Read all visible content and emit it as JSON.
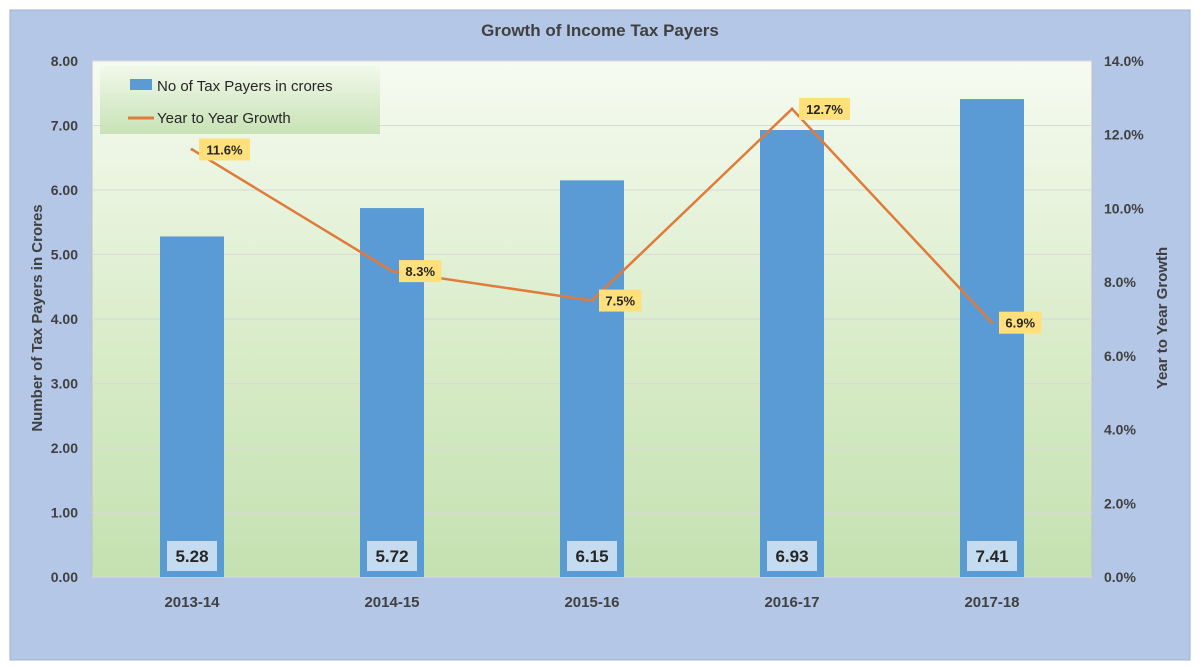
{
  "chart_data": {
    "type": "bar",
    "title": "Growth of Income Tax Payers",
    "categories": [
      "2013-14",
      "2014-15",
      "2015-16",
      "2016-17",
      "2017-18"
    ],
    "ylabel": "Number of Tax Payers in Crores",
    "y2label": "Year to Year Growth",
    "ylim": [
      0,
      8
    ],
    "y2lim": [
      0,
      14
    ],
    "yticks": [
      "0.00",
      "1.00",
      "2.00",
      "3.00",
      "4.00",
      "5.00",
      "6.00",
      "7.00",
      "8.00"
    ],
    "y2ticks": [
      "0.0%",
      "2.0%",
      "4.0%",
      "6.0%",
      "8.0%",
      "10.0%",
      "12.0%",
      "14.0%"
    ],
    "grid": true,
    "legend_position": "top-left",
    "series": [
      {
        "name": "No of Tax Payers in crores",
        "type": "bar",
        "axis": "left",
        "color": "#5b9bd5",
        "values": [
          5.28,
          5.72,
          6.15,
          6.93,
          7.41
        ],
        "labels": [
          "5.28",
          "5.72",
          "6.15",
          "6.93",
          "7.41"
        ]
      },
      {
        "name": "Year to Year Growth",
        "type": "line",
        "axis": "right",
        "color": "#e07b39",
        "values": [
          11.6,
          8.3,
          7.5,
          12.7,
          6.9
        ],
        "labels": [
          "11.6%",
          "8.3%",
          "7.5%",
          "12.7%",
          "6.9%"
        ]
      }
    ],
    "colors": {
      "frame": "#b4c7e7",
      "bar_label_bg": "#c5dcf0",
      "line_label_bg": "#ffe07a",
      "text": "#404040"
    }
  }
}
